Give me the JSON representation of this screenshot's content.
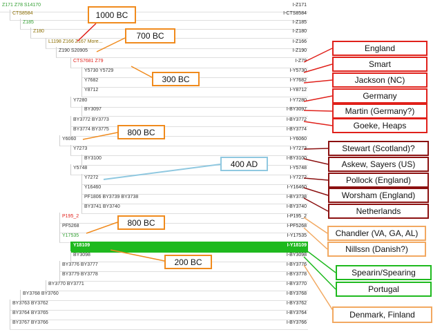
{
  "tree": {
    "rows": [
      {
        "label": "Z171  Z78  S14170",
        "code": "I-Z171",
        "color": "#2e9d2e"
      },
      {
        "label": "CTS8584",
        "code": "I-CTS8584",
        "color": "#8c6d00"
      },
      {
        "label": "Z185",
        "code": "I-Z185",
        "color": "#2e9d2e"
      },
      {
        "label": "Z180",
        "code": "I-Z180",
        "color": "#8c6d00"
      },
      {
        "label": "L1198  Z166  Z167  More...",
        "code": "I-Z166",
        "color": "#8c6d00"
      },
      {
        "label": "Z190  S20905",
        "code": "I-Z190",
        "color": "#333"
      },
      {
        "label": "CTS7681  Z79",
        "code": "I-Z79",
        "color": "#e0201a"
      },
      {
        "label": "Y5730  Y5729",
        "code": "I-Y5730",
        "color": "#333"
      },
      {
        "label": "Y7682",
        "code": "I-Y7682",
        "color": "#333"
      },
      {
        "label": "Y8712",
        "code": "I-Y8712",
        "color": "#333"
      },
      {
        "label": "Y7280",
        "code": "I-Y7280",
        "color": "#333"
      },
      {
        "label": "BY3097",
        "code": "I-BY3097",
        "color": "#333"
      },
      {
        "label": "BY3772  BY3773",
        "code": "I-BY3772",
        "color": "#333"
      },
      {
        "label": "BY3774  BY3775",
        "code": "I-BY3774",
        "color": "#333"
      },
      {
        "label": "Y6060",
        "code": "I-Y6060",
        "color": "#333"
      },
      {
        "label": "Y7273",
        "code": "I-Y7273",
        "color": "#333"
      },
      {
        "label": "BY3100",
        "code": "I-BY3100",
        "color": "#333"
      },
      {
        "label": "Y5748",
        "code": "I-Y5748",
        "color": "#333"
      },
      {
        "label": "Y7272",
        "code": "I-Y7272",
        "color": "#333"
      },
      {
        "label": "Y16460",
        "code": "I-Y16460",
        "color": "#333"
      },
      {
        "label": "PF1806  BY3739  BY3738",
        "code": "I-BY3738",
        "color": "#333"
      },
      {
        "label": "BY3741  BY3740",
        "code": "I-BY3740",
        "color": "#333"
      },
      {
        "label": "P195_2",
        "code": "I-P195_2",
        "color": "#e0201a"
      },
      {
        "label": "PF5268",
        "code": "I-PF5268",
        "color": "#333"
      },
      {
        "label": "Y17535",
        "code": "I-Y17535",
        "color": "#2e9d2e"
      },
      {
        "label": "Y18109",
        "code": "I-Y18109",
        "color": "#ffffff"
      },
      {
        "label": "BY3098",
        "code": "I-BY3098",
        "color": "#333"
      },
      {
        "label": "BY3776  BY3777",
        "code": "I-BY3776",
        "color": "#333"
      },
      {
        "label": "BY3779  BY3778",
        "code": "I-BY3778",
        "color": "#333"
      },
      {
        "label": "BY3770  BY3771",
        "code": "I-BY3770",
        "color": "#333"
      },
      {
        "label": "BY3768  BY3760",
        "code": "I-BY3768",
        "color": "#333"
      },
      {
        "label": "BY3763  BY3762",
        "code": "I-BY3762",
        "color": "#333"
      },
      {
        "label": "BY3764  BY3765",
        "code": "I-BY3764",
        "color": "#333"
      },
      {
        "label": "BY3767  BY3766",
        "code": "I-BY3766",
        "color": "#333"
      }
    ],
    "highlight_color": "#1eb91e"
  },
  "ages": [
    {
      "label": "1000 BC",
      "color": "#f08a1c"
    },
    {
      "label": "700 BC",
      "color": "#f08a1c"
    },
    {
      "label": "300 BC",
      "color": "#f08a1c"
    },
    {
      "label": "800 BC",
      "color": "#f08a1c"
    },
    {
      "label": "400 AD",
      "color": "#8fc8e0"
    },
    {
      "label": "800 BC",
      "color": "#f08a1c"
    },
    {
      "label": "200 BC",
      "color": "#f08a1c"
    }
  ],
  "places": [
    {
      "label": "England",
      "color": "#e0201a"
    },
    {
      "label": "Smart",
      "color": "#e0201a"
    },
    {
      "label": "Jackson (NC)",
      "color": "#e0201a"
    },
    {
      "label": "Germany",
      "color": "#e0201a"
    },
    {
      "label": "Martin (Germany?)",
      "color": "#e0201a"
    },
    {
      "label": "Goeke, Heaps",
      "color": "#e0201a"
    },
    {
      "label": "Stewart (Scotland)?",
      "color": "#8b1010"
    },
    {
      "label": "Askew, Sayers (US)",
      "color": "#8b1010"
    },
    {
      "label": "Pollock (England)",
      "color": "#8b1010"
    },
    {
      "label": "Worsham (England)",
      "color": "#8b1010"
    },
    {
      "label": "Netherlands",
      "color": "#8b1010"
    },
    {
      "label": "Chandler (VA, GA, AL)",
      "color": "#f2a860"
    },
    {
      "label": "Nillssn (Danish?)",
      "color": "#f2a860"
    },
    {
      "label": "Spearin/Spearing",
      "color": "#1eb91e"
    },
    {
      "label": "Portugal",
      "color": "#1eb91e"
    },
    {
      "label": "Denmark, Finland",
      "color": "#f2a860"
    }
  ]
}
